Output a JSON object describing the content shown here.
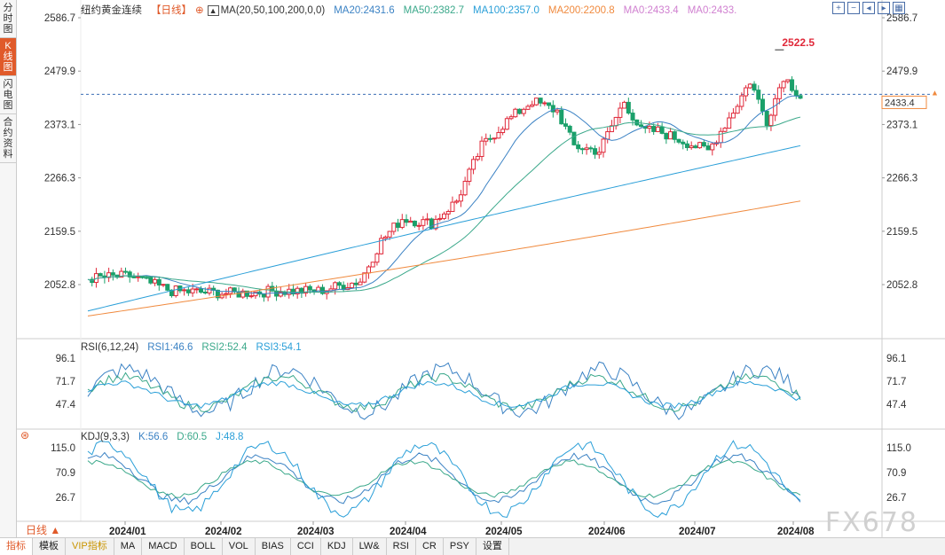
{
  "side_tabs": [
    "分时图",
    "K线图",
    "闪电图",
    "合约资料"
  ],
  "header": {
    "title": "纽约黄金连续",
    "period_tag": "【日线】",
    "ma_label": "MA(20,50,100,200,0,0)",
    "ma_items": [
      {
        "label": "MA20:2431.6",
        "color": "#3b82c4"
      },
      {
        "label": "MA50:2382.7",
        "color": "#3aa88a"
      },
      {
        "label": "MA100:2357.0",
        "color": "#2a9fd8"
      },
      {
        "label": "MA200:2200.8",
        "color": "#f08a3e"
      },
      {
        "label": "MA0:2433.4",
        "color": "#d080d0"
      },
      {
        "label": "MA0:2433.",
        "color": "#d080d0"
      }
    ]
  },
  "toolbar_icons": [
    "plus-icon",
    "minus-icon",
    "left-icon",
    "right-icon",
    "grid-icon"
  ],
  "price_axis": {
    "ticks": [
      "2586.7",
      "2479.9",
      "2373.1",
      "2266.3",
      "2159.5",
      "2052.8"
    ],
    "current": "2433.4",
    "high_label": "2522.5"
  },
  "rsi": {
    "header": "RSI(6,12,24)",
    "items": [
      {
        "label": "RSI1:46.6",
        "color": "#3b82c4"
      },
      {
        "label": "RSI2:52.4",
        "color": "#3aa88a"
      },
      {
        "label": "RSI3:54.1",
        "color": "#2a9fd8"
      }
    ],
    "ticks": [
      "96.1",
      "71.7",
      "47.4"
    ]
  },
  "kdj": {
    "header": "KDJ(9,3,3)",
    "items": [
      {
        "label": "K:56.6",
        "color": "#3b82c4"
      },
      {
        "label": "D:60.5",
        "color": "#3aa88a"
      },
      {
        "label": "J:48.8",
        "color": "#2a9fd8"
      }
    ],
    "ticks": [
      "115.0",
      "70.9",
      "26.7"
    ]
  },
  "x_axis": [
    "2024/01",
    "2024/02",
    "2024/03",
    "2024/04",
    "2024/05",
    "2024/06",
    "2024/07",
    "2024/08"
  ],
  "period_select": "日线 ▲",
  "bottom_tabs": [
    "指标",
    "模板",
    "VIP指标",
    "MA",
    "MACD",
    "BOLL",
    "VOL",
    "BIAS",
    "CCI",
    "KDJ",
    "LW&",
    "RSI",
    "CR",
    "PSY",
    "设置"
  ],
  "watermark": "FX678"
}
